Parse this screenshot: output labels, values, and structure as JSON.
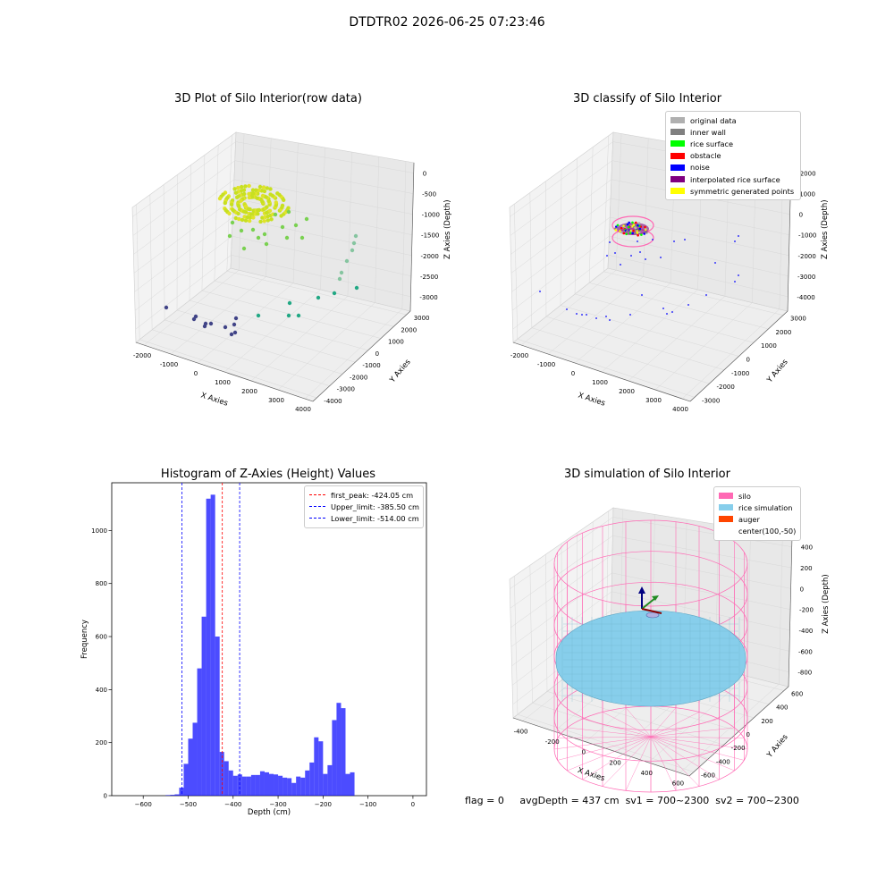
{
  "figure": {
    "suptitle": "DTDTR02 2026-06-25 07:23:46",
    "footer": {
      "flag": "flag = 0",
      "avg_depth": "avgDepth = 437 cm",
      "sv1": "sv1 = 700~2300",
      "sv2": "sv2 = 700~2300"
    }
  },
  "chart_data": [
    {
      "type": "scatter",
      "subtype": "3d",
      "title": "3D Plot of Silo Interior(row data)",
      "xlabel": "X Axies",
      "ylabel": "Y Axies",
      "zlabel": "Z Axies (Depth)",
      "x_ticks": [
        "-2000",
        "-1000",
        "0",
        "1000",
        "2000",
        "3000",
        "4000"
      ],
      "y_ticks": [
        "3000",
        "2000",
        "1000",
        "0",
        "-1000",
        "-2000",
        "-3000",
        "-4000"
      ],
      "z_ticks": [
        "0",
        "-500",
        "-1000",
        "-1500",
        "-2000",
        "-2500",
        "-3000"
      ],
      "colormap": "viridis",
      "colors": {
        "cluster": "#c8e020",
        "high": "#7ad151",
        "mid": "#22a884",
        "low": "#414487"
      }
    },
    {
      "type": "scatter",
      "subtype": "3d",
      "title": "3D classify of Silo Interior",
      "xlabel": "X Axies",
      "ylabel": "Y Axies",
      "zlabel": "Z Axies (Depth)",
      "x_ticks": [
        "-2000",
        "-1000",
        "0",
        "1000",
        "2000",
        "3000",
        "4000"
      ],
      "y_ticks": [
        "3000",
        "2000",
        "1000",
        "0",
        "-1000",
        "-2000",
        "-3000"
      ],
      "z_ticks": [
        "2000",
        "1000",
        "0",
        "-1000",
        "-2000",
        "-3000",
        "-4000"
      ],
      "legend_placement": "upper right",
      "legend": [
        {
          "label": "original data",
          "color": "#b0b0b0"
        },
        {
          "label": "inner wall",
          "color": "#808080"
        },
        {
          "label": "rice surface",
          "color": "#00ff00"
        },
        {
          "label": "obstacle",
          "color": "#ff0000"
        },
        {
          "label": "noise",
          "color": "#0000ff"
        },
        {
          "label": "interpolated rice surface",
          "color": "#800080"
        },
        {
          "label": "symmetric generated points",
          "color": "#ffff00"
        }
      ]
    },
    {
      "type": "bar",
      "subtype": "histogram",
      "title": "Histogram of Z-Axies (Height) Values",
      "xlabel": "Depth (cm)",
      "ylabel": "Frequency",
      "xlim": [
        -670,
        30
      ],
      "ylim": [
        0,
        1180
      ],
      "x_ticks": [
        -600,
        -500,
        -400,
        -300,
        -200,
        -100,
        0
      ],
      "y_ticks": [
        0,
        200,
        400,
        600,
        800,
        1000
      ],
      "bar_color": "#0000ff",
      "bar_alpha": 0.7,
      "bin_width": 10,
      "bins": [
        {
          "left": -550,
          "value": 2
        },
        {
          "left": -540,
          "value": 3
        },
        {
          "left": -530,
          "value": 5
        },
        {
          "left": -520,
          "value": 30
        },
        {
          "left": -510,
          "value": 120
        },
        {
          "left": -500,
          "value": 215
        },
        {
          "left": -490,
          "value": 275
        },
        {
          "left": -480,
          "value": 480
        },
        {
          "left": -470,
          "value": 675
        },
        {
          "left": -460,
          "value": 1120
        },
        {
          "left": -450,
          "value": 1135
        },
        {
          "left": -440,
          "value": 600
        },
        {
          "left": -430,
          "value": 165
        },
        {
          "left": -420,
          "value": 130
        },
        {
          "left": -410,
          "value": 95
        },
        {
          "left": -400,
          "value": 75
        },
        {
          "left": -390,
          "value": 80
        },
        {
          "left": -380,
          "value": 72
        },
        {
          "left": -370,
          "value": 72
        },
        {
          "left": -360,
          "value": 78
        },
        {
          "left": -350,
          "value": 78
        },
        {
          "left": -340,
          "value": 92
        },
        {
          "left": -330,
          "value": 88
        },
        {
          "left": -320,
          "value": 82
        },
        {
          "left": -310,
          "value": 80
        },
        {
          "left": -300,
          "value": 75
        },
        {
          "left": -290,
          "value": 68
        },
        {
          "left": -280,
          "value": 66
        },
        {
          "left": -270,
          "value": 48
        },
        {
          "left": -260,
          "value": 72
        },
        {
          "left": -250,
          "value": 68
        },
        {
          "left": -240,
          "value": 95
        },
        {
          "left": -230,
          "value": 125
        },
        {
          "left": -220,
          "value": 220
        },
        {
          "left": -210,
          "value": 205
        },
        {
          "left": -200,
          "value": 82
        },
        {
          "left": -190,
          "value": 115
        },
        {
          "left": -180,
          "value": 285
        },
        {
          "left": -170,
          "value": 350
        },
        {
          "left": -160,
          "value": 330
        },
        {
          "left": -150,
          "value": 82
        },
        {
          "left": -140,
          "value": 88
        }
      ],
      "vlines": [
        {
          "x": -424.05,
          "label": "first_peak: -424.05 cm",
          "color": "#ff0000"
        },
        {
          "x": -385.5,
          "label": "Upper_limit: -385.50 cm",
          "color": "#0000ff"
        },
        {
          "x": -514.0,
          "label": "Lower_limit: -514.00 cm",
          "color": "#0000ff"
        }
      ],
      "legend_placement": "upper right"
    },
    {
      "type": "scatter",
      "subtype": "3d-surface",
      "title": "3D simulation of Silo Interior",
      "xlabel": "X Axies",
      "ylabel": "Y Axies",
      "zlabel": "Z Axies (Depth)",
      "x_ticks": [
        "-400",
        "-200",
        "0",
        "200",
        "400",
        "600"
      ],
      "y_ticks": [
        "600",
        "400",
        "200",
        "0",
        "-200",
        "-400",
        "-600"
      ],
      "z_ticks": [
        "400",
        "200",
        "0",
        "-200",
        "-400",
        "-600",
        "-800"
      ],
      "legend_placement": "upper right",
      "legend": [
        {
          "label": "silo",
          "color": "#ff69b4"
        },
        {
          "label": "rice simulation",
          "color": "#87ceeb"
        },
        {
          "label": "auger",
          "color": "#ff4500"
        },
        {
          "label": "center(100,-50)",
          "color": ""
        }
      ]
    }
  ]
}
